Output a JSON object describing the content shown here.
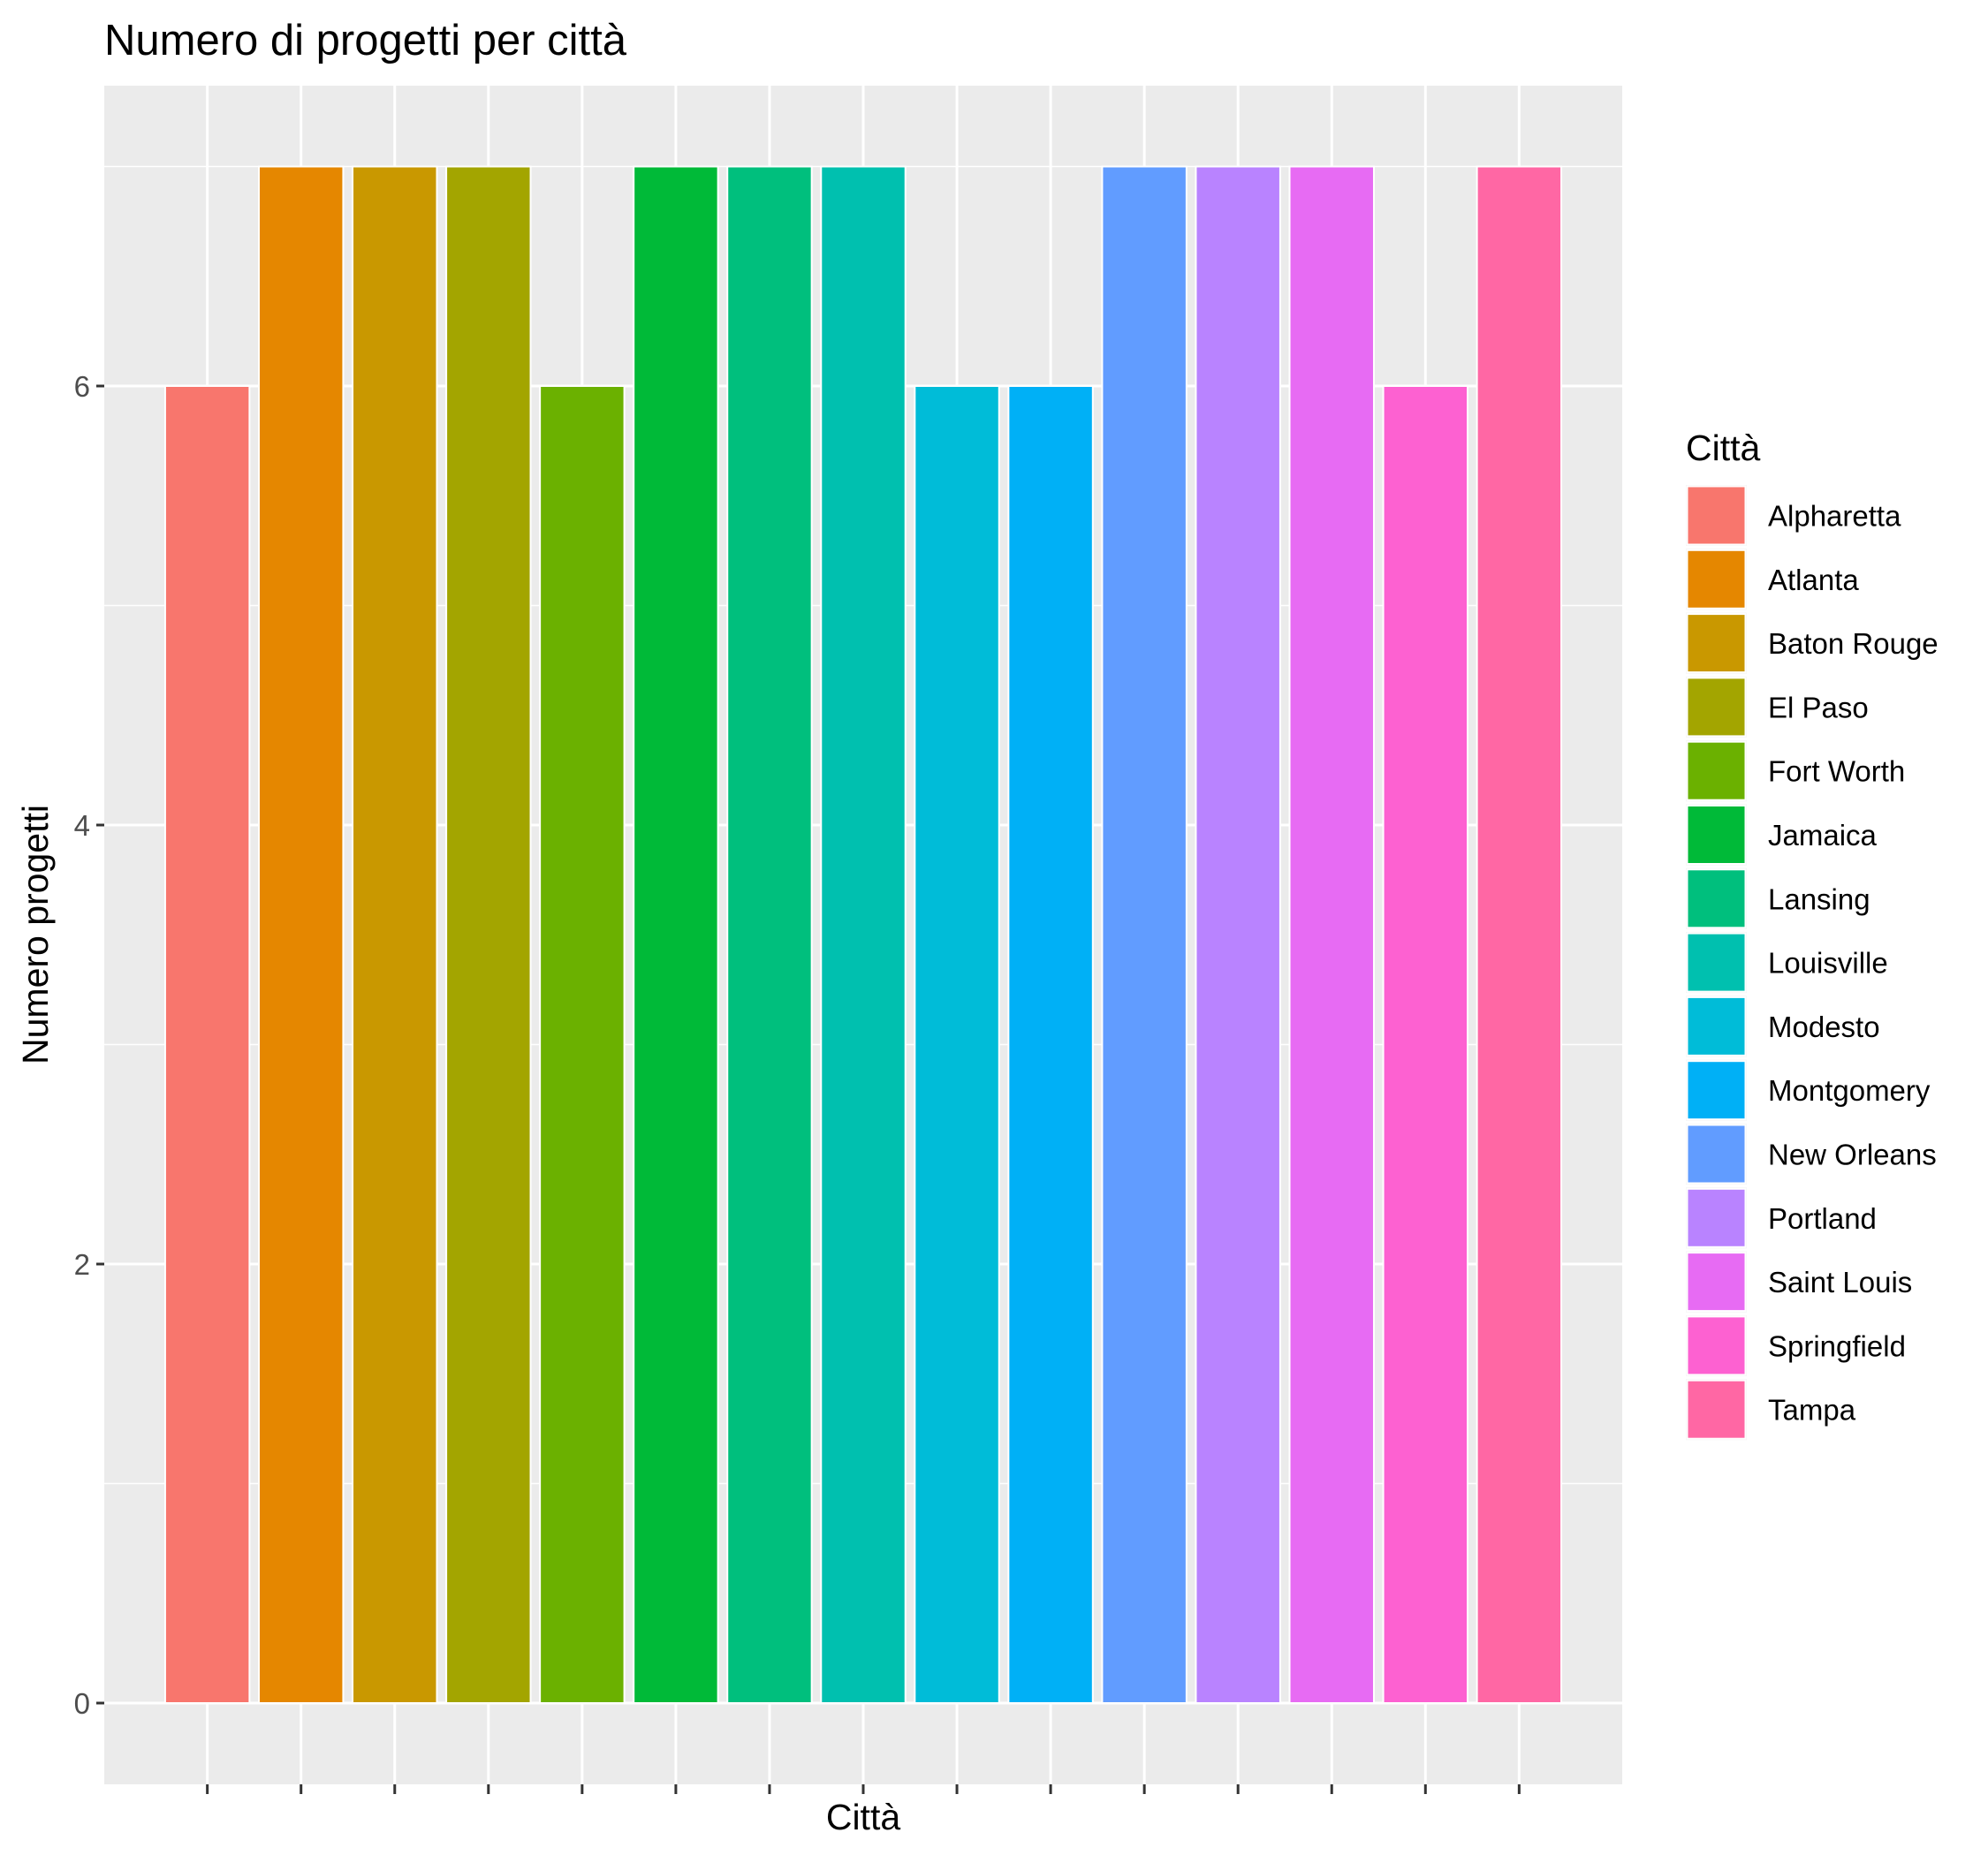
{
  "chart_data": {
    "type": "bar",
    "title": "Numero di progetti per città",
    "xlabel": "Città",
    "ylabel": "Numero progetti",
    "ylim": [
      0,
      7
    ],
    "y_ticks": [
      0,
      2,
      4,
      6
    ],
    "grid": true,
    "panel_background": "#EBEBEB",
    "legend": {
      "title": "Città",
      "position": "right"
    },
    "categories": [
      "Alpharetta",
      "Atlanta",
      "Baton Rouge",
      "El Paso",
      "Fort Worth",
      "Jamaica",
      "Lansing",
      "Louisville",
      "Modesto",
      "Montgomery",
      "New Orleans",
      "Portland",
      "Saint Louis",
      "Springfield",
      "Tampa"
    ],
    "values": [
      6,
      7,
      7,
      7,
      6,
      7,
      7,
      7,
      6,
      6,
      7,
      7,
      7,
      6,
      7
    ],
    "colors": [
      "#F8766D",
      "#E58700",
      "#C99800",
      "#A3A500",
      "#6BB100",
      "#00BA38",
      "#00BF7D",
      "#00C0AF",
      "#00BCD8",
      "#00B0F6",
      "#619CFF",
      "#B983FF",
      "#E76BF3",
      "#FD61D1",
      "#FF67A4"
    ]
  }
}
